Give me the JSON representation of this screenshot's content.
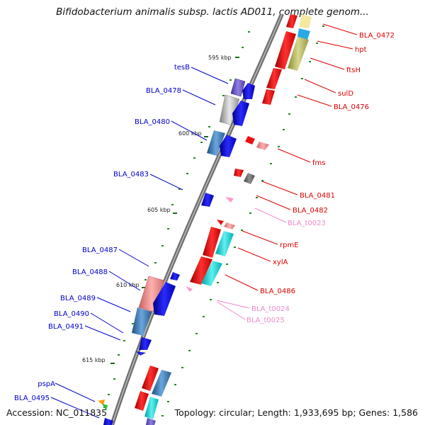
{
  "header": {
    "title": "Bifidobacterium animalis subsp. lactis AD011, complete genom..."
  },
  "footer": {
    "accession": "Accession: NC_011835",
    "summary": "Topology: circular; Length: 1,933,695 bp; Genes: 1,586"
  },
  "map": {
    "tick_labels": [
      "595 kbp",
      "600 kbp",
      "605 kbp",
      "610 kbp",
      "615 kbp"
    ],
    "colors": {
      "reverse_strand": "#0000ee",
      "forward_strand": "#ee0000",
      "rna": "#ee88cc",
      "tick": "#228b22",
      "backbone": "#777777"
    },
    "left_labels": [
      "tesB",
      "BLA_0478",
      "BLA_0480",
      "BLA_0483",
      "BLA_0487",
      "BLA_0488",
      "BLA_0489",
      "BLA_0490",
      "BLA_0491",
      "pspA",
      "BLA_0495"
    ],
    "right_labels": [
      "BLA_0472",
      "hpt",
      "ftsH",
      "sulD",
      "BLA_0476",
      "fms",
      "BLA_0481",
      "BLA_0482",
      "BLA_t0023",
      "rpmE",
      "xylA",
      "BLA_0486",
      "BLA_t0024",
      "BLA_t0025"
    ]
  }
}
